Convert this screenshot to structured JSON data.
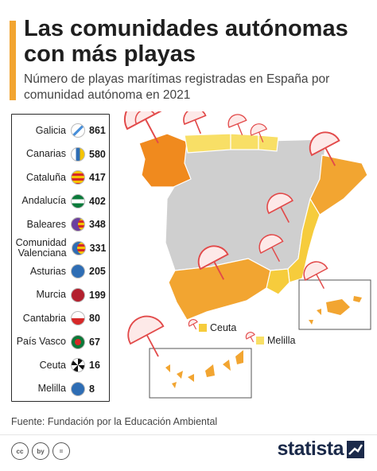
{
  "title": "Las comunidades autónomas con más playas",
  "subtitle": "Número de playas marítimas registradas en España por comunidad autónoma en 2021",
  "chart_data": {
    "type": "table",
    "title": "Las comunidades autónomas con más playas",
    "subtitle": "Número de playas marítimas registradas en España por comunidad autónoma en 2021",
    "categories": [
      "Galicia",
      "Canarias",
      "Cataluña",
      "Andalucía",
      "Baleares",
      "Comunidad Valenciana",
      "Asturias",
      "Murcia",
      "Cantabria",
      "País Vasco",
      "Ceuta",
      "Melilla"
    ],
    "values": [
      861,
      580,
      417,
      402,
      348,
      331,
      205,
      199,
      80,
      67,
      16,
      8
    ],
    "map_labels": {
      "ceuta": "Ceuta",
      "melilla": "Melilla"
    },
    "colors": {
      "high": "#f08a1e",
      "mid": "#f2a531",
      "low": "#f6cc3c",
      "lowest": "#f8df66",
      "no_coast": "#cfcfcf",
      "accent": "#f2a531"
    }
  },
  "legend_flags": [
    "galicia-flag-icon",
    "canarias-flag-icon",
    "cataluna-flag-icon",
    "andalucia-flag-icon",
    "baleares-flag-icon",
    "valenciana-flag-icon",
    "asturias-flag-icon",
    "murcia-flag-icon",
    "cantabria-flag-icon",
    "pais-vasco-flag-icon",
    "ceuta-flag-icon",
    "melilla-flag-icon"
  ],
  "footer": {
    "source": "Fuente: Fundación por la Educación Ambiental",
    "cc_icons": [
      "cc",
      "by",
      "="
    ],
    "brand": "statista"
  }
}
